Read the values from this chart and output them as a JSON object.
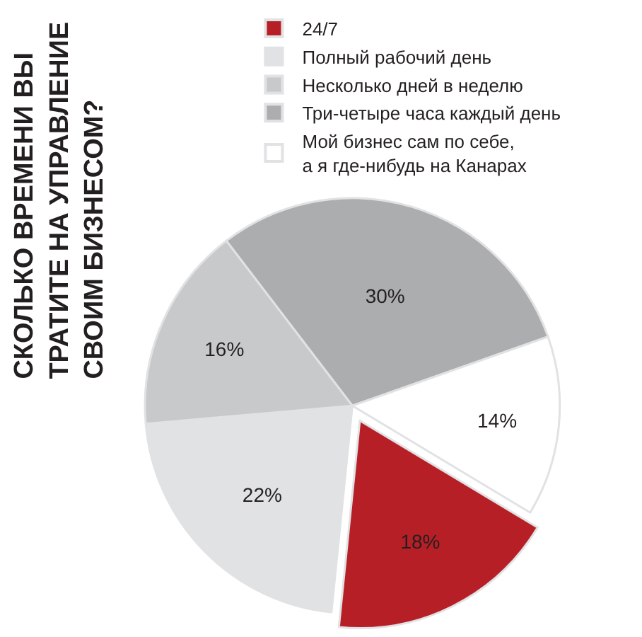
{
  "chart_data": {
    "type": "pie",
    "title": "СКОЛЬКО ВРЕМЕНИ ВЫ\nТРАТИТЕ НА УПРАВЛЕНИЕ\nСВОИМ БИЗНЕСОМ?",
    "categories": [
      "24/7",
      "Полный рабочий день",
      "Несколько дней в неделю",
      "Три-четыре часа каждый день",
      "Мой бизнес сам по себе,\nа я где-нибудь на Канарах"
    ],
    "values": [
      18,
      22,
      16,
      30,
      14
    ],
    "value_labels": [
      "18%",
      "22%",
      "16%",
      "30%",
      "14%"
    ],
    "colors": [
      "#b71f27",
      "#e1e2e4",
      "#c8c9cb",
      "#acadaf",
      "#ffffff"
    ],
    "legend": "top right"
  }
}
